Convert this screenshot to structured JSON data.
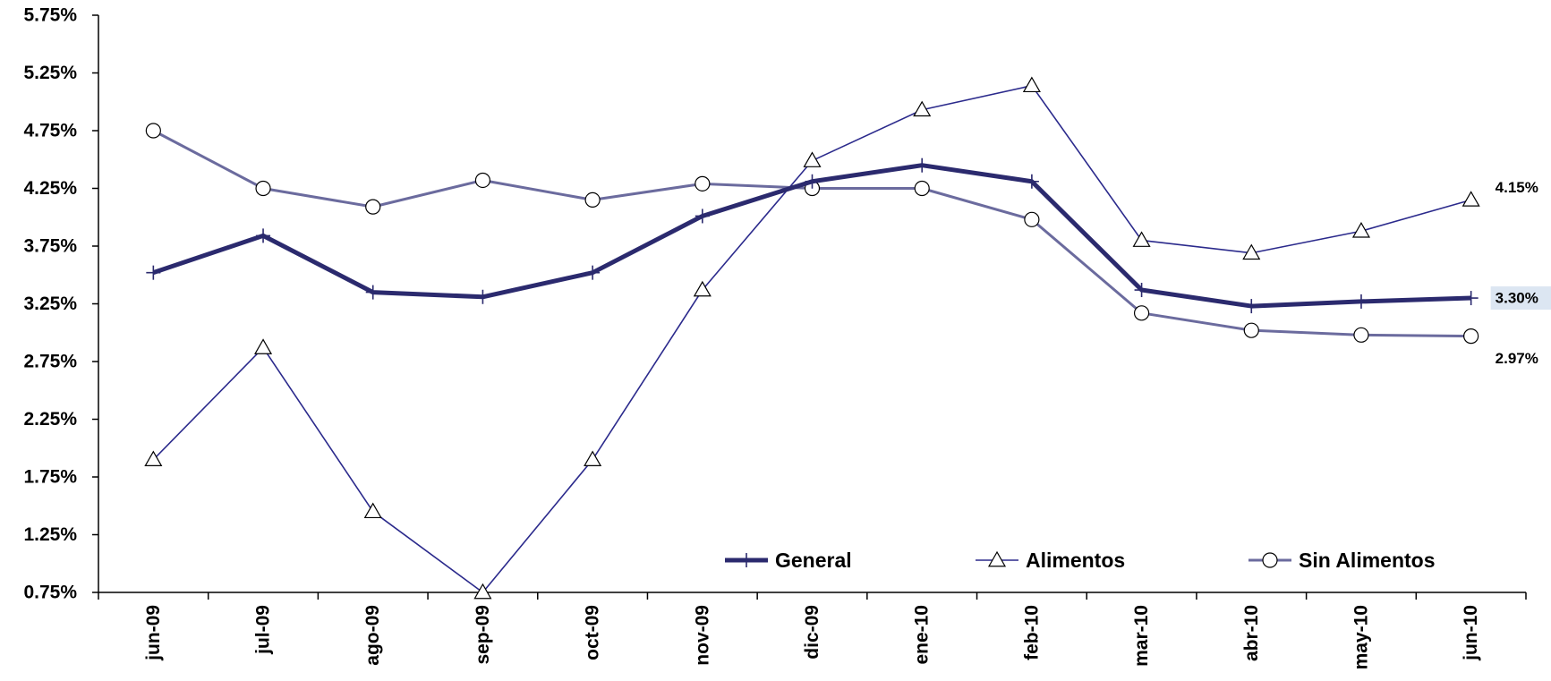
{
  "chart_data": {
    "type": "line",
    "categories": [
      "jun-09",
      "jul-09",
      "ago-09",
      "sep-09",
      "oct-09",
      "nov-09",
      "dic-09",
      "ene-10",
      "feb-10",
      "mar-10",
      "abr-10",
      "may-10",
      "jun-10"
    ],
    "ylim": [
      0.75,
      5.75
    ],
    "yticks": [
      "0.75%",
      "1.25%",
      "1.75%",
      "2.25%",
      "2.75%",
      "3.25%",
      "3.75%",
      "4.25%",
      "4.75%",
      "5.25%",
      "5.75%"
    ],
    "ytick_values": [
      0.75,
      1.25,
      1.75,
      2.25,
      2.75,
      3.25,
      3.75,
      4.25,
      4.75,
      5.25,
      5.75
    ],
    "grid": false,
    "legend_position": "bottom-right",
    "series": [
      {
        "name": "General",
        "marker": "plus",
        "color": "#2b2a6e",
        "values": [
          3.52,
          3.84,
          3.35,
          3.31,
          3.52,
          4.01,
          4.31,
          4.45,
          4.31,
          3.37,
          3.23,
          3.27,
          3.3
        ]
      },
      {
        "name": "Alimentos",
        "marker": "triangle",
        "color": "#2b2a8c",
        "values": [
          1.9,
          2.87,
          1.45,
          0.75,
          1.9,
          3.37,
          4.49,
          4.93,
          5.14,
          3.8,
          3.69,
          3.88,
          4.15
        ]
      },
      {
        "name": "Sin Alimentos",
        "marker": "circle",
        "color": "#6b6b9e",
        "values": [
          4.75,
          4.25,
          4.09,
          4.32,
          4.15,
          4.29,
          4.25,
          4.25,
          3.98,
          3.17,
          3.02,
          2.98,
          2.97
        ]
      }
    ],
    "end_labels": [
      {
        "series": "Alimentos",
        "text": "4.15%"
      },
      {
        "series": "General",
        "text": "3.30%",
        "highlight": "#dce6f2"
      },
      {
        "series": "Sin Alimentos",
        "text": "2.97%"
      }
    ]
  }
}
